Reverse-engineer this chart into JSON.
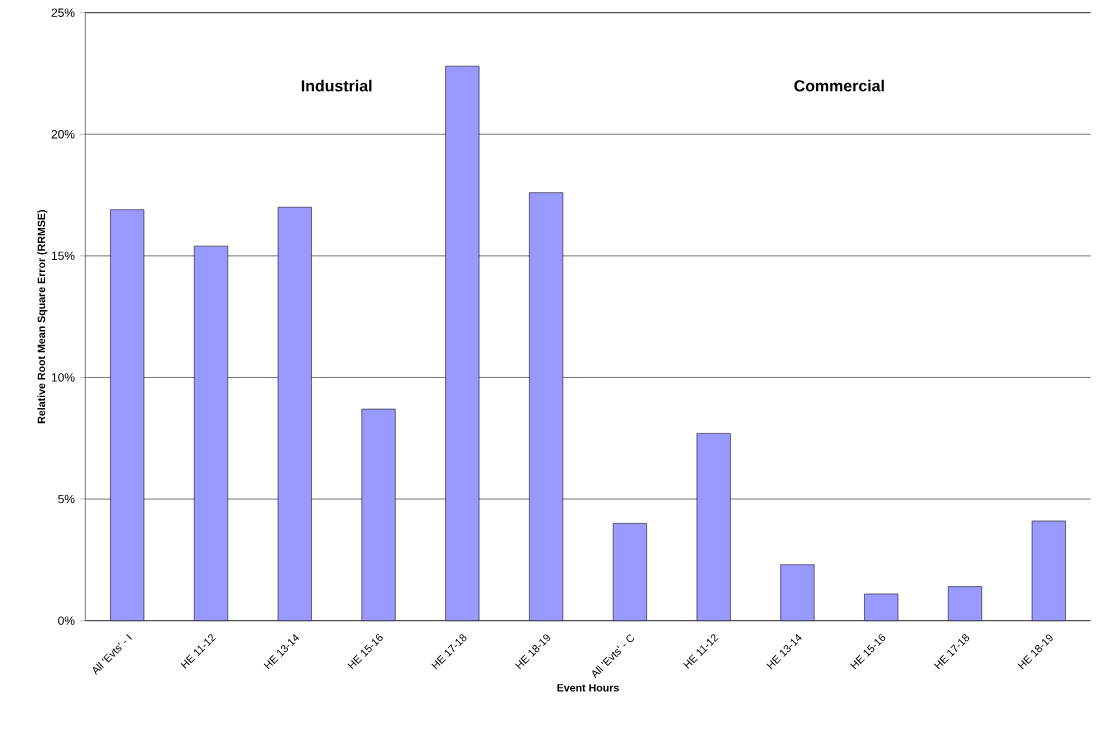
{
  "chart_data": {
    "type": "bar",
    "categories": [
      "All 'Evts' - I",
      "HE 11-12",
      "HE 13-14",
      "HE 15-16",
      "HE 17-18",
      "HE 18-19",
      "All 'Evts' - C",
      "HE 11-12",
      "HE 13-14",
      "HE 15-16",
      "HE 17-18",
      "HE 18-19"
    ],
    "values": [
      16.9,
      15.4,
      17.0,
      8.7,
      22.8,
      17.6,
      4.0,
      7.7,
      2.3,
      1.1,
      1.4,
      4.1
    ],
    "color": "#9999ff",
    "xlabel": "Event Hours",
    "ylabel": "Relative Root Mean Square Error (RRMSE)",
    "ylim": [
      0,
      25
    ],
    "yticks": [
      {
        "value": 0,
        "label": "0%"
      },
      {
        "value": 5,
        "label": "5%"
      },
      {
        "value": 10,
        "label": "10%"
      },
      {
        "value": 15,
        "label": "15%"
      },
      {
        "value": 20,
        "label": "20%"
      },
      {
        "value": 25,
        "label": "25%"
      }
    ],
    "grid": "y",
    "annotations": [
      "Industrial",
      "Commercial"
    ]
  }
}
